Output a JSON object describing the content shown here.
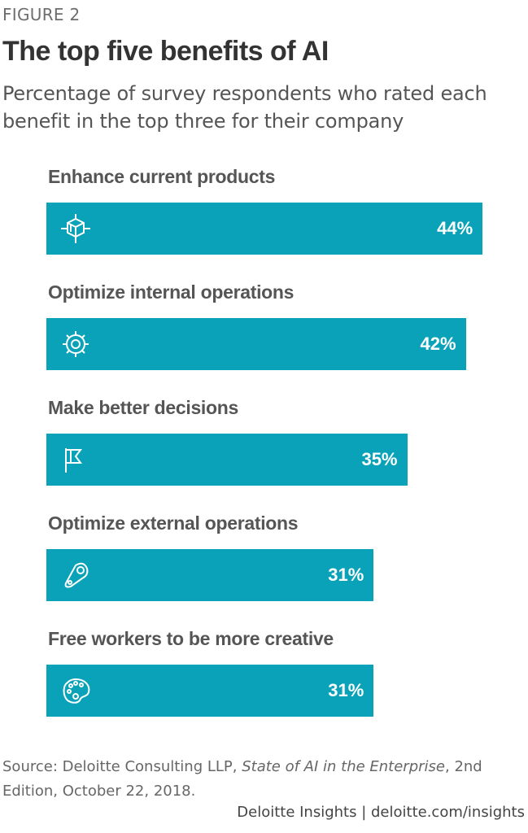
{
  "figure_label": "FIGURE 2",
  "chart_data": {
    "type": "bar",
    "orientation": "horizontal",
    "title": "The top five benefits of AI",
    "subtitle": "Percentage of survey respondents who rated each benefit in the top three for their company",
    "categories": [
      "Enhance current products",
      "Optimize internal operations",
      "Make better decisions",
      "Optimize external operations",
      "Free workers to be more creative"
    ],
    "values": [
      44,
      42,
      35,
      31,
      31
    ],
    "value_labels": [
      "44%",
      "42%",
      "35%",
      "31%",
      "31%"
    ],
    "icons": [
      "cube-icon",
      "gear-icon",
      "flag-icon",
      "tag-icon",
      "palette-icon"
    ],
    "bar_color": "#0aa2b8",
    "grid": false
  },
  "source": {
    "prefix": "Source: Deloitte Consulting LLP, ",
    "title": "State of AI in the Enterprise",
    "suffix": ", 2nd Edition, October 22, 2018."
  },
  "footer": "Deloitte Insights | deloitte.com/insights"
}
